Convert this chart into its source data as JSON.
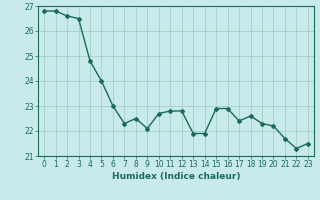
{
  "x": [
    0,
    1,
    2,
    3,
    4,
    5,
    6,
    7,
    8,
    9,
    10,
    11,
    12,
    13,
    14,
    15,
    16,
    17,
    18,
    19,
    20,
    21,
    22,
    23
  ],
  "y": [
    26.8,
    26.8,
    26.6,
    26.5,
    24.8,
    24.0,
    23.0,
    22.3,
    22.5,
    22.1,
    22.7,
    22.8,
    22.8,
    21.9,
    21.9,
    22.9,
    22.9,
    22.4,
    22.6,
    22.3,
    22.2,
    21.7,
    21.3,
    21.5
  ],
  "line_color": "#1a6b5a",
  "marker": "D",
  "marker_size": 2,
  "linewidth": 1.0,
  "xlabel": "Humidex (Indice chaleur)",
  "ylim": [
    21,
    27
  ],
  "xlim": [
    -0.5,
    23.5
  ],
  "yticks": [
    21,
    22,
    23,
    24,
    25,
    26,
    27
  ],
  "xticks": [
    0,
    1,
    2,
    3,
    4,
    5,
    6,
    7,
    8,
    9,
    10,
    11,
    12,
    13,
    14,
    15,
    16,
    17,
    18,
    19,
    20,
    21,
    22,
    23
  ],
  "bg_color": "#c8eaea",
  "grid_color": "#a0c8c0",
  "axis_color": "#1a6b5a",
  "tick_fontsize": 5.5,
  "xlabel_fontsize": 6.5
}
